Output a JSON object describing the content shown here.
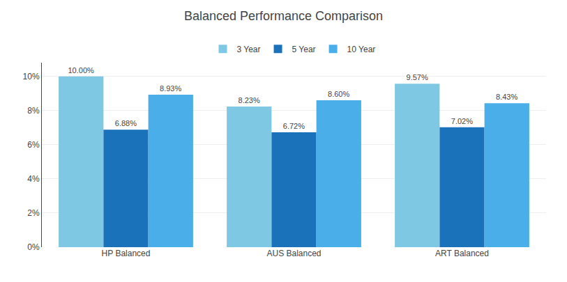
{
  "chart_data": {
    "type": "bar",
    "title": "Balanced Performance Comparison",
    "categories": [
      "HP Balanced",
      "AUS Balanced",
      "ART Balanced"
    ],
    "series": [
      {
        "name": "3 Year",
        "color": "#7ec8e3",
        "values": [
          10.0,
          8.23,
          9.57
        ],
        "value_labels": [
          "10.00%",
          "8.23%",
          "9.57%"
        ]
      },
      {
        "name": "5 Year",
        "color": "#1a72bb",
        "values": [
          6.88,
          6.72,
          7.02
        ],
        "value_labels": [
          "6.88%",
          "6.72%",
          "7.02%"
        ]
      },
      {
        "name": "10 Year",
        "color": "#4aaee8",
        "values": [
          8.93,
          8.6,
          8.43
        ],
        "value_labels": [
          "8.93%",
          "8.60%",
          "8.43%"
        ]
      }
    ],
    "ylim": [
      0,
      10.8
    ],
    "yticks": [
      {
        "value": 0,
        "label": "0%"
      },
      {
        "value": 2,
        "label": "2%"
      },
      {
        "value": 4,
        "label": "4%"
      },
      {
        "value": 6,
        "label": "6%"
      },
      {
        "value": 8,
        "label": "8%"
      },
      {
        "value": 10,
        "label": "10%"
      }
    ],
    "grid": true,
    "legend": "top",
    "data_labels": true
  }
}
